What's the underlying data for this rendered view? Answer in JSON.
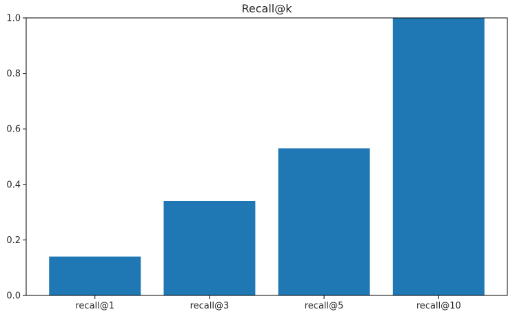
{
  "chart_data": {
    "type": "bar",
    "title": "Recall@k",
    "categories": [
      "recall@1",
      "recall@3",
      "recall@5",
      "recall@10"
    ],
    "values": [
      0.14,
      0.34,
      0.53,
      1.0
    ],
    "xlabel": "",
    "ylabel": "",
    "ylim": [
      0,
      1.0
    ],
    "yticks": [
      "0.0",
      "0.2",
      "0.4",
      "0.6",
      "0.8",
      "1.0"
    ],
    "grid": false,
    "bar_color": "#1f77b4"
  }
}
